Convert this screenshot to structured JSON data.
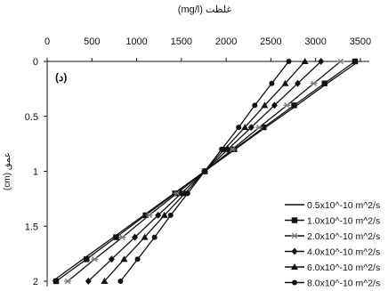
{
  "chart_data": {
    "type": "line",
    "panel_label": "(د)",
    "xlabel": "(mg/l) غلظت",
    "ylabel": "(cm) عمق",
    "x_ticks": [
      "0",
      "500",
      "1000",
      "1500",
      "2000",
      "2500",
      "3000",
      "3500"
    ],
    "y_ticks": [
      "0",
      "0.5",
      "1",
      "1.5",
      "2"
    ],
    "xlim": [
      0,
      3600
    ],
    "ylim": [
      0,
      2
    ],
    "y_inverted": true,
    "x_axis_position": "top",
    "grid": false,
    "legend_position": "bottom-right",
    "y": [
      0,
      0.2,
      0.4,
      0.6,
      0.8,
      1.0,
      1.2,
      1.4,
      1.6,
      1.8,
      2.0
    ],
    "series": [
      {
        "name": "0.5x10^-10 m^2/s",
        "marker": "none",
        "x": [
          3480,
          3130,
          2790,
          2440,
          2100,
          1760,
          1420,
          1080,
          740,
          400,
          60
        ]
      },
      {
        "name": "1.0x10^-10 m^2/s",
        "marker": "square",
        "x": [
          3440,
          3100,
          2760,
          2420,
          2090,
          1760,
          1430,
          1100,
          770,
          440,
          100
        ]
      },
      {
        "name": "2.0x10^-10 m^2/s",
        "marker": "asterisk",
        "x": [
          3280,
          2980,
          2680,
          2370,
          2070,
          1760,
          1450,
          1140,
          840,
          530,
          230
        ]
      },
      {
        "name": "4.0x10^-10 m^2/s",
        "marker": "diamond",
        "x": [
          3060,
          2800,
          2540,
          2280,
          2020,
          1760,
          1500,
          1240,
          980,
          720,
          460
        ]
      },
      {
        "name": "6.0x10^-10 m^2/s",
        "marker": "triangle",
        "x": [
          2880,
          2660,
          2430,
          2210,
          1980,
          1760,
          1540,
          1310,
          1090,
          860,
          640
        ]
      },
      {
        "name": "8.0x10^-10 m^2/s",
        "marker": "circle",
        "x": [
          2700,
          2510,
          2320,
          2140,
          1950,
          1760,
          1570,
          1380,
          1200,
          1010,
          820
        ]
      }
    ]
  }
}
